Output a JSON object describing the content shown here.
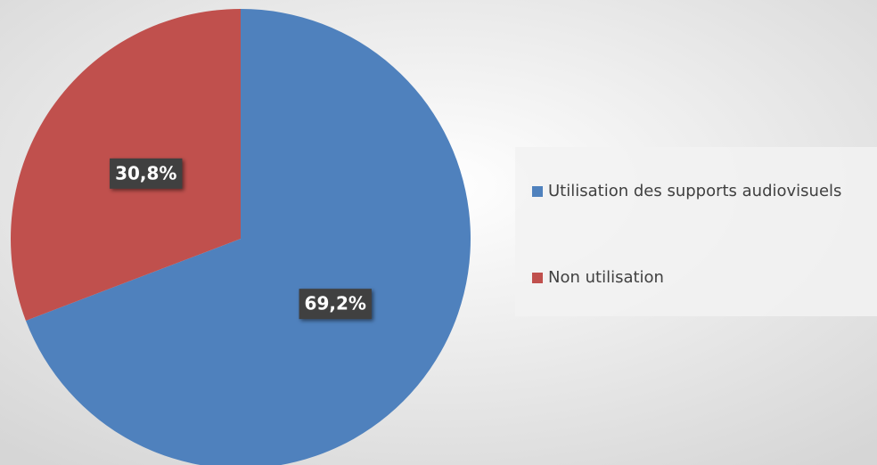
{
  "chart_data": {
    "type": "pie",
    "categories": [
      "Utilisation des supports audiovisuels",
      "Non utilisation"
    ],
    "values": [
      69.2,
      30.8
    ],
    "value_labels": [
      "69,2%",
      "30,8%"
    ],
    "colors": [
      "#4f81bd",
      "#c0504d"
    ],
    "legend": "right"
  }
}
